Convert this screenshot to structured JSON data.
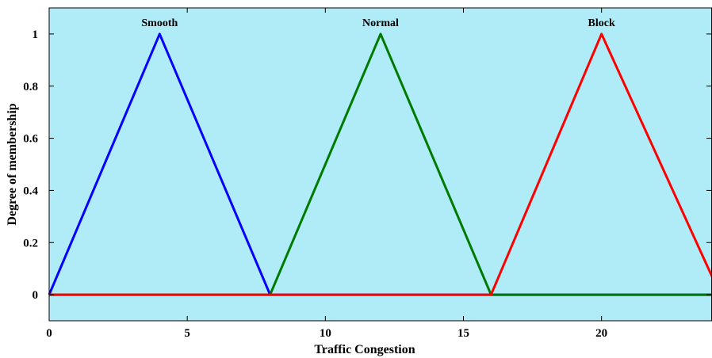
{
  "chart_data": {
    "type": "line",
    "xlabel": "Traffic Congestion",
    "ylabel": "Degree of membership",
    "xlim": [
      0,
      24
    ],
    "ylim": [
      -0.1,
      1.1
    ],
    "xticks": [
      0,
      5,
      10,
      15,
      20
    ],
    "yticks": [
      0,
      0.2,
      0.4,
      0.6,
      0.8,
      1
    ],
    "xtick_labels": [
      "0",
      "5",
      "10",
      "15",
      "20"
    ],
    "ytick_labels": [
      "0",
      "0.2",
      "0.4",
      "0.6",
      "0.8",
      "1"
    ],
    "grid": false,
    "background_color": "#b0ecf8",
    "series": [
      {
        "name": "Smooth",
        "color": "#0000ff",
        "x": [
          0,
          4,
          8,
          24
        ],
        "y": [
          0,
          1,
          0,
          0
        ]
      },
      {
        "name": "Normal",
        "color": "#007a00",
        "x": [
          0,
          8,
          12,
          16,
          24
        ],
        "y": [
          0,
          0,
          1,
          0,
          0
        ]
      },
      {
        "name": "Block",
        "color": "#ff0000",
        "x": [
          0,
          16,
          20,
          24
        ],
        "y": [
          0,
          0,
          1,
          0.07
        ]
      }
    ],
    "annotations": [
      {
        "text": "Smooth",
        "x": 4,
        "y": 1
      },
      {
        "text": "Normal",
        "x": 12,
        "y": 1
      },
      {
        "text": "Block",
        "x": 20,
        "y": 1
      }
    ]
  }
}
